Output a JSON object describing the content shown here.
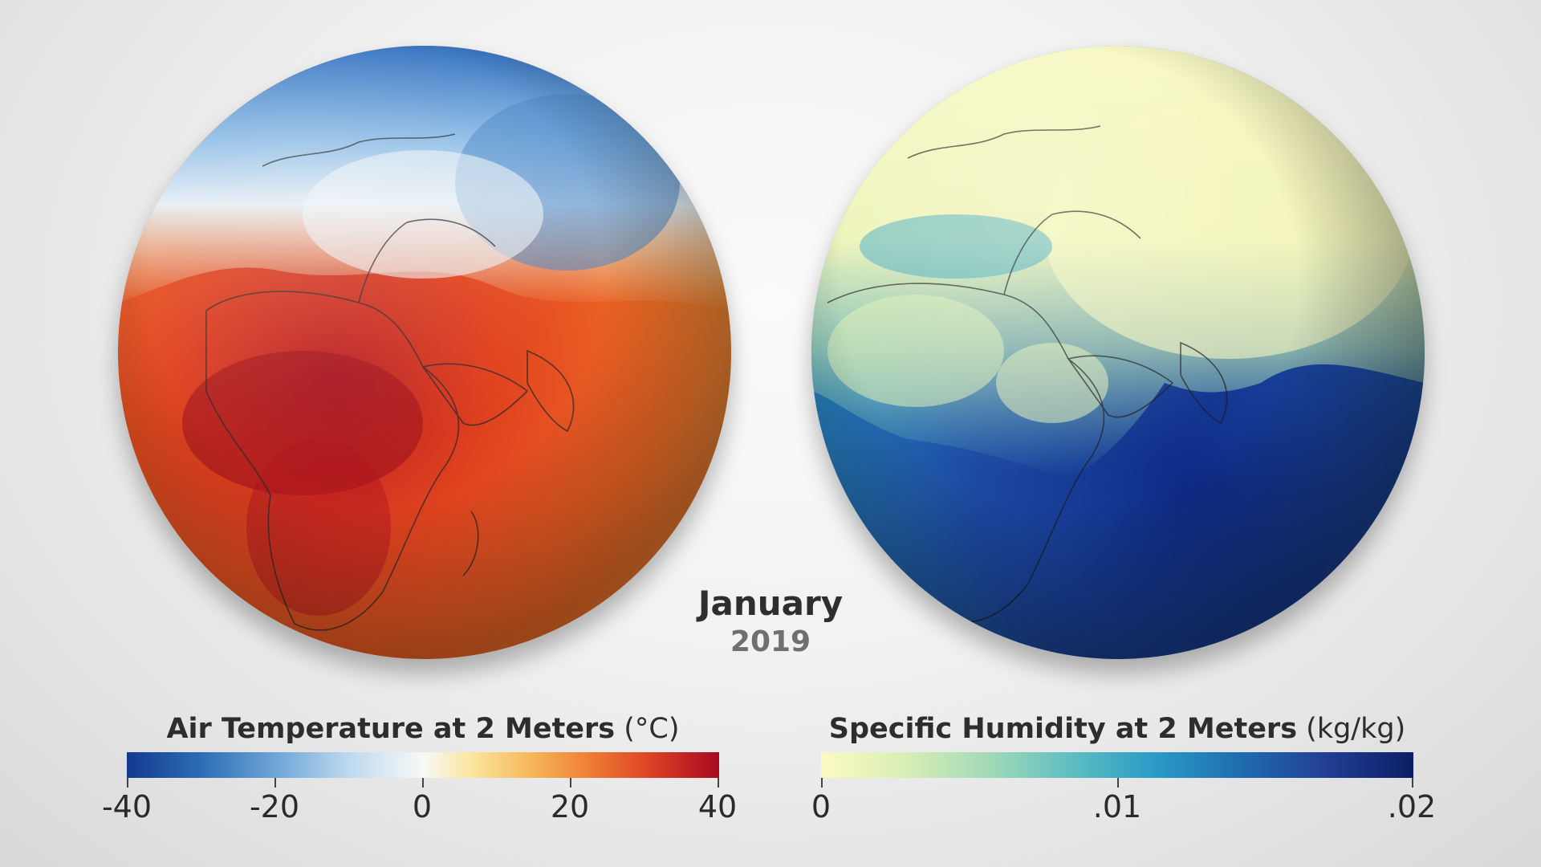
{
  "date": {
    "month": "January",
    "year": "2019"
  },
  "temperature": {
    "title": "Air Temperature at 2 Meters",
    "unit": "(°C)",
    "ticks": [
      "-40",
      "-20",
      "0",
      "20",
      "40"
    ],
    "colors": {
      "cold": "#16398f",
      "neutral": "#f7f8f5",
      "hot": "#a8091f"
    }
  },
  "humidity": {
    "title": "Specific Humidity at 2 Meters",
    "unit": "(kg/kg)",
    "ticks": [
      "0",
      ".01",
      ".02"
    ],
    "colors": {
      "dry": "#fbf9c3",
      "mid": "#2b9cc6",
      "moist": "#0a1e63"
    }
  },
  "icons": [
    "globe-temperature-map",
    "globe-humidity-map"
  ]
}
